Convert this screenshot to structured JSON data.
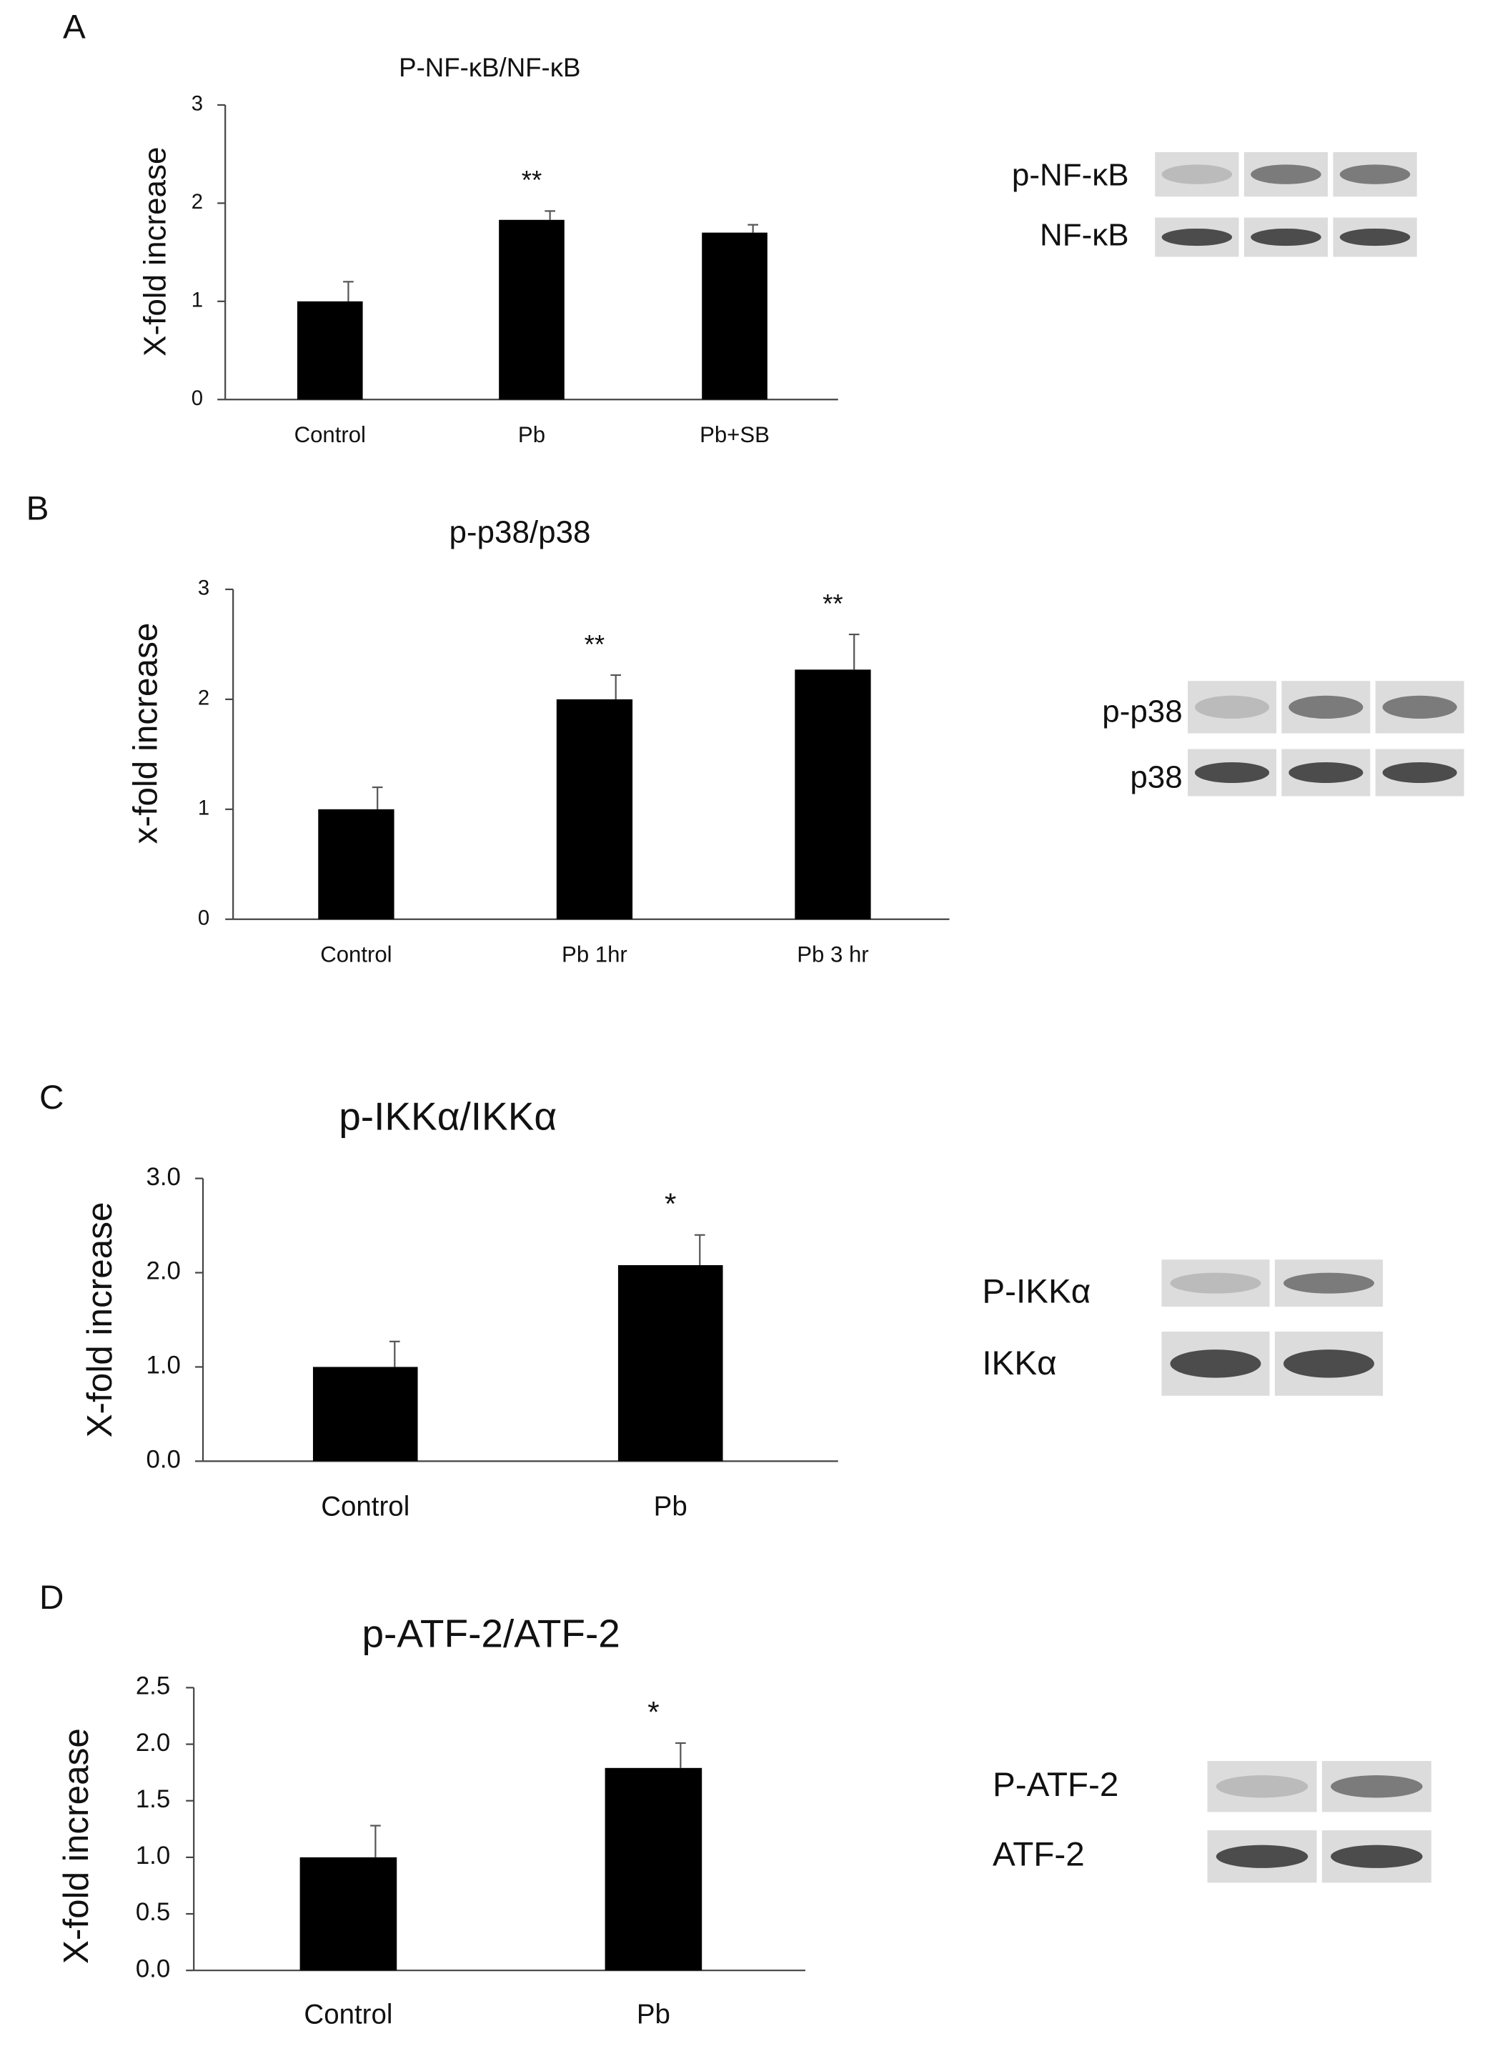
{
  "chart_data": [
    {
      "type": "bar",
      "panel": "A",
      "title": "P-NF-κB/NF-κB",
      "y_label": "X-fold increase",
      "categories": [
        "Control",
        "Pb",
        "Pb+SB"
      ],
      "values": [
        1.0,
        1.83,
        1.7
      ],
      "errors": [
        0.2,
        0.09,
        0.08
      ],
      "annotations": [
        null,
        "**",
        null
      ],
      "color": "#000000",
      "ylim": [
        0,
        3
      ],
      "yticks": [
        0,
        1,
        2,
        3
      ],
      "blot_labels": [
        "p-NF-κB",
        "NF-κB"
      ]
    },
    {
      "type": "bar",
      "panel": "B",
      "title": "p-p38/p38",
      "y_label": "x-fold increase",
      "categories": [
        "Control",
        "Pb 1hr",
        "Pb 3 hr"
      ],
      "values": [
        1.0,
        2.0,
        2.27
      ],
      "errors": [
        0.2,
        0.22,
        0.32
      ],
      "annotations": [
        null,
        "**",
        "**"
      ],
      "color": "#000000",
      "ylim": [
        0,
        3
      ],
      "yticks": [
        0,
        1,
        2,
        3
      ],
      "blot_labels": [
        "p-p38",
        "p38"
      ]
    },
    {
      "type": "bar",
      "panel": "C",
      "title": "p-IKKα/IKKα",
      "y_label": "X-fold increase",
      "categories": [
        "Control",
        "Pb"
      ],
      "values": [
        1.0,
        2.08
      ],
      "errors": [
        0.27,
        0.32
      ],
      "annotations": [
        null,
        "*"
      ],
      "color": "#000000",
      "ylim": [
        0,
        3
      ],
      "yticks": [
        {
          "value": 0,
          "label": "0.0"
        },
        {
          "value": 1,
          "label": "1.0"
        },
        {
          "value": 2,
          "label": "2.0"
        },
        {
          "value": 3,
          "label": "3.0"
        }
      ],
      "blot_labels": [
        "P-IKKα",
        "IKKα"
      ]
    },
    {
      "type": "bar",
      "panel": "D",
      "title": "p-ATF-2/ATF-2",
      "y_label": "X-fold increase",
      "categories": [
        "Control",
        "Pb"
      ],
      "values": [
        1.0,
        1.79
      ],
      "errors": [
        0.28,
        0.22
      ],
      "annotations": [
        null,
        "*"
      ],
      "color": "#000000",
      "ylim": [
        0,
        2.5
      ],
      "yticks": [
        {
          "value": 0,
          "label": "0.0"
        },
        {
          "value": 0.5,
          "label": "0.5"
        },
        {
          "value": 1,
          "label": "1.0"
        },
        {
          "value": 1.5,
          "label": "1.5"
        },
        {
          "value": 2,
          "label": "2.0"
        },
        {
          "value": 2.5,
          "label": "2.5"
        }
      ],
      "blot_labels": [
        "P-ATF-2",
        "ATF-2"
      ]
    }
  ]
}
